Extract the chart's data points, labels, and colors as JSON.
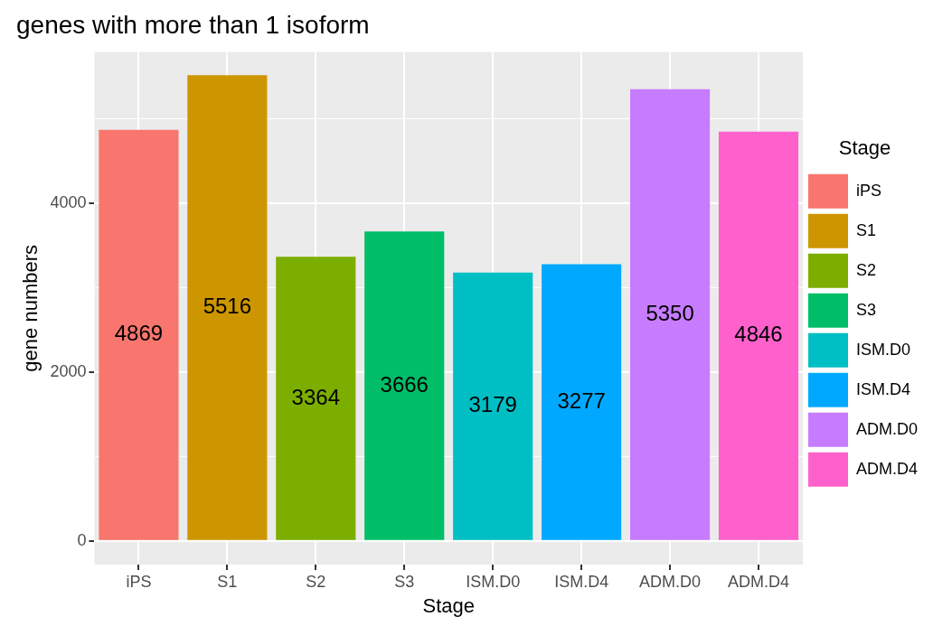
{
  "chart_data": {
    "type": "bar",
    "title": "genes with more than 1 isoform",
    "xlabel": "Stage",
    "ylabel": "gene numbers",
    "legend_title": "Stage",
    "categories": [
      "iPS",
      "S1",
      "S2",
      "S3",
      "ISM.D0",
      "ISM.D4",
      "ADM.D0",
      "ADM.D4"
    ],
    "series": [
      {
        "name": "iPS",
        "color": "#f8766d",
        "values": [
          4869,
          null,
          null,
          null,
          null,
          null,
          null,
          null
        ]
      },
      {
        "name": "S1",
        "color": "#cd9600",
        "values": [
          null,
          5516,
          null,
          null,
          null,
          null,
          null,
          null
        ]
      },
      {
        "name": "S2",
        "color": "#7cae00",
        "values": [
          null,
          null,
          3364,
          null,
          null,
          null,
          null,
          null
        ]
      },
      {
        "name": "S3",
        "color": "#00be67",
        "values": [
          null,
          null,
          null,
          3666,
          null,
          null,
          null,
          null
        ]
      },
      {
        "name": "ISM.D0",
        "color": "#00bfc4",
        "values": [
          null,
          null,
          null,
          null,
          3179,
          null,
          null,
          null
        ]
      },
      {
        "name": "ISM.D4",
        "color": "#00a9ff",
        "values": [
          null,
          null,
          null,
          null,
          null,
          3277,
          null,
          null
        ]
      },
      {
        "name": "ADM.D0",
        "color": "#c77cff",
        "values": [
          null,
          null,
          null,
          null,
          null,
          null,
          5350,
          null
        ]
      },
      {
        "name": "ADM.D4",
        "color": "#ff61cc",
        "values": [
          null,
          null,
          null,
          null,
          null,
          null,
          null,
          4846
        ]
      }
    ],
    "ylim": [
      -280,
      5790
    ],
    "yticks": [
      0,
      2000,
      4000
    ],
    "grid": true,
    "legend": "right",
    "data_labels": true
  }
}
